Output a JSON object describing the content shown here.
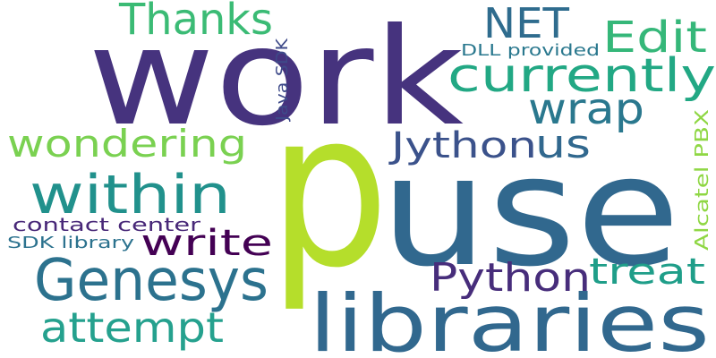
{
  "words": [
    {
      "text": "work",
      "color": "#46337e"
    },
    {
      "text": "p",
      "color": "#b5de2b"
    },
    {
      "text": "use",
      "color": "#31688e"
    },
    {
      "text": "libraries",
      "color": "#31688e"
    },
    {
      "text": "Genesys",
      "color": "#2c728e"
    },
    {
      "text": "within",
      "color": "#21918c"
    },
    {
      "text": "wondering",
      "color": "#7ad151"
    },
    {
      "text": "currently",
      "color": "#22a884"
    },
    {
      "text": "Thanks",
      "color": "#3bbb75"
    },
    {
      "text": "NET",
      "color": "#2f6c8e"
    },
    {
      "text": "Edit",
      "color": "#35b779"
    },
    {
      "text": "wrap",
      "color": "#2a788e"
    },
    {
      "text": "Jython",
      "color": "#3b528b"
    },
    {
      "text": "us",
      "color": "#31688e"
    },
    {
      "text": "write",
      "color": "#440154"
    },
    {
      "text": "Python",
      "color": "#472d7b"
    },
    {
      "text": "treat",
      "color": "#1f9e89"
    },
    {
      "text": "attempt",
      "color": "#25a18e"
    },
    {
      "text": "contact center",
      "color": "#482878"
    },
    {
      "text": "SDK library",
      "color": "#2c728e"
    },
    {
      "text": "DLL provided",
      "color": "#2a788e"
    },
    {
      "text": "Java SDK",
      "color": "#3e4a89"
    },
    {
      "text": "Alcatel PBX",
      "color": "#8fd744"
    }
  ]
}
